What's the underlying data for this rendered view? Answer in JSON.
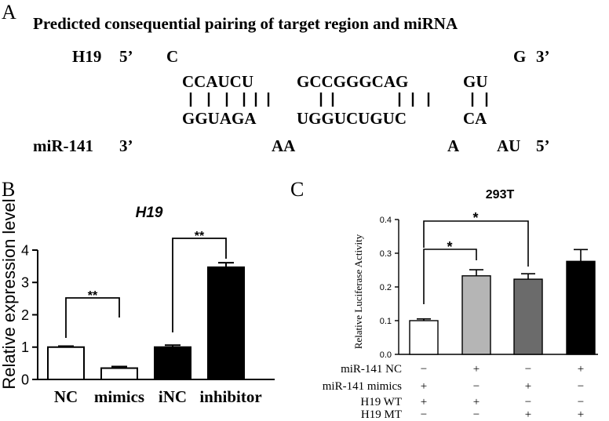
{
  "panel_a": {
    "letter": "A",
    "title": "Predicted consequential pairing of target region and miRNA",
    "top_label": "H19",
    "top_end5": "5’",
    "top_overhang_left": "C",
    "top_overhang_right": "G",
    "top_end3": "3’",
    "pair_top": [
      "CCAUCU",
      "GCCGGGCAG",
      "GU"
    ],
    "pair_bottom": [
      "GGUAGA",
      "UGGUCUGUC",
      "CA"
    ],
    "bottom_label": "miR-141",
    "bottom_end3": "3’",
    "bottom_loop_1": "AA",
    "bottom_loop_2": "A",
    "bottom_loop_3": "AU",
    "bottom_end5": "5’"
  },
  "panel_b": {
    "letter": "B",
    "sig_1": "**",
    "sig_2": "**"
  },
  "panel_c": {
    "letter": "C",
    "sig_1": "*",
    "sig_2": "*",
    "row_labels": [
      "miR-141 NC",
      "miR-141 mimics",
      "H19 WT",
      "H19 MT"
    ],
    "rows": [
      [
        "−",
        "+",
        "−",
        "+"
      ],
      [
        "+",
        "−",
        "+",
        "−"
      ],
      [
        "+",
        "+",
        "−",
        "−"
      ],
      [
        "−",
        "−",
        "+",
        "+"
      ]
    ]
  },
  "chart_data": [
    {
      "type": "bar",
      "title": "H19",
      "ylabel": "Relative expression level",
      "xlabel": "",
      "categories": [
        "NC",
        "mimics",
        "iNC",
        "inhibitor"
      ],
      "values": [
        1.0,
        0.35,
        1.0,
        3.47
      ],
      "errors": [
        0.03,
        0.05,
        0.06,
        0.14
      ],
      "colors": [
        "#ffffff",
        "#ffffff",
        "#000000",
        "#000000"
      ],
      "ylim": [
        0,
        4
      ],
      "yticks": [
        0,
        1,
        2,
        3,
        4
      ],
      "grid": false
    },
    {
      "type": "bar",
      "title": "293T",
      "ylabel": "Relative Luciferase Activity",
      "xlabel": "",
      "categories": [
        "",
        "",
        "",
        ""
      ],
      "values": [
        0.1,
        0.233,
        0.223,
        0.276
      ],
      "errors": [
        0.005,
        0.018,
        0.016,
        0.035
      ],
      "colors": [
        "#ffffff",
        "#b5b5b5",
        "#6b6b6b",
        "#000000"
      ],
      "ylim": [
        0,
        0.4
      ],
      "yticks": [
        "0.0",
        "0.1",
        "0.2",
        "0.3",
        "0.4"
      ],
      "grid": false
    }
  ]
}
